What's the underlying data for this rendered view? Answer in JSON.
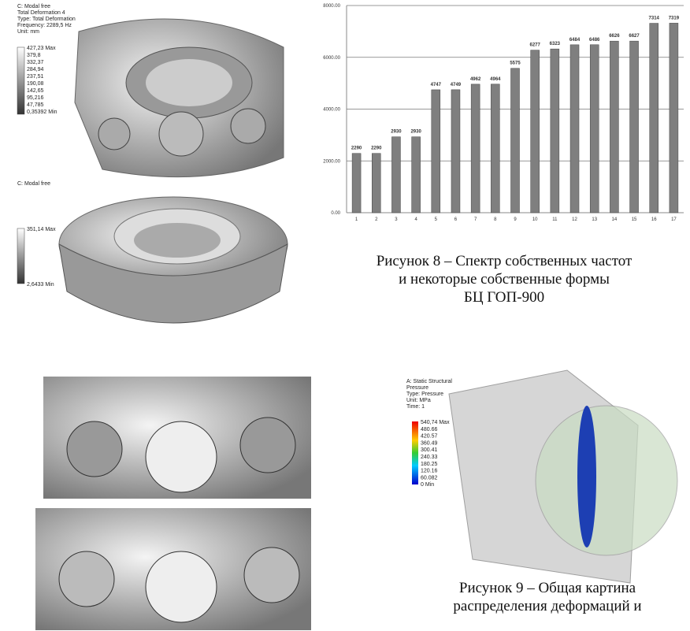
{
  "chart_data": {
    "type": "bar",
    "categories": [
      "1",
      "2",
      "3",
      "4",
      "5",
      "6",
      "7",
      "8",
      "9",
      "10",
      "11",
      "12",
      "13",
      "14",
      "15",
      "16",
      "17"
    ],
    "values": [
      2290,
      2290,
      2930,
      2930,
      4747,
      4749,
      4962,
      4964,
      5575,
      6277,
      6323,
      6484,
      6486,
      6626,
      6627,
      7314,
      7319
    ],
    "color": "#7f7f7f",
    "ylim": [
      0,
      8000
    ],
    "yticks": [
      {
        "value": 0,
        "label": "0.00"
      },
      {
        "value": 2000,
        "label": "2000.00"
      },
      {
        "value": 4000,
        "label": "4000.00"
      },
      {
        "value": 6000,
        "label": "6000.00"
      },
      {
        "value": 8000,
        "label": "8000.00"
      }
    ],
    "grid": true
  },
  "figure_1": {
    "header": [
      "C: Modal free",
      "Total Deformation 4",
      "Type: Total Deformation",
      "Frequency: 2289,5 Hz",
      "Unit: mm"
    ],
    "legend": [
      "427,23 Max",
      "379,8",
      "332,37",
      "284,94",
      "237,51",
      "190,08",
      "142,65",
      "95,216",
      "47,785",
      "0,35392 Min"
    ]
  },
  "figure_2": {
    "header": [
      "C: Modal free"
    ],
    "legend": [
      "351,14 Max",
      "2,6433 Min"
    ]
  },
  "figure_4": {
    "header": [
      "A: Static Structural",
      "Pressure",
      "Type: Pressure",
      "Unit: MPa",
      "Time: 1"
    ],
    "legend": [
      "540,74 Max",
      "480.66",
      "420.57",
      "360.49",
      "300.41",
      "240.33",
      "180.25",
      "120.16",
      "60.082",
      "0 Min"
    ]
  },
  "captions": {
    "figure_8": [
      "Рисунок 8 – Спектр собственных частот",
      "и некоторые собственные формы",
      "БЦ ГОП-900"
    ],
    "figure_9": [
      "Рисунок 9 – Общая картина",
      "распределения деформаций и"
    ]
  }
}
